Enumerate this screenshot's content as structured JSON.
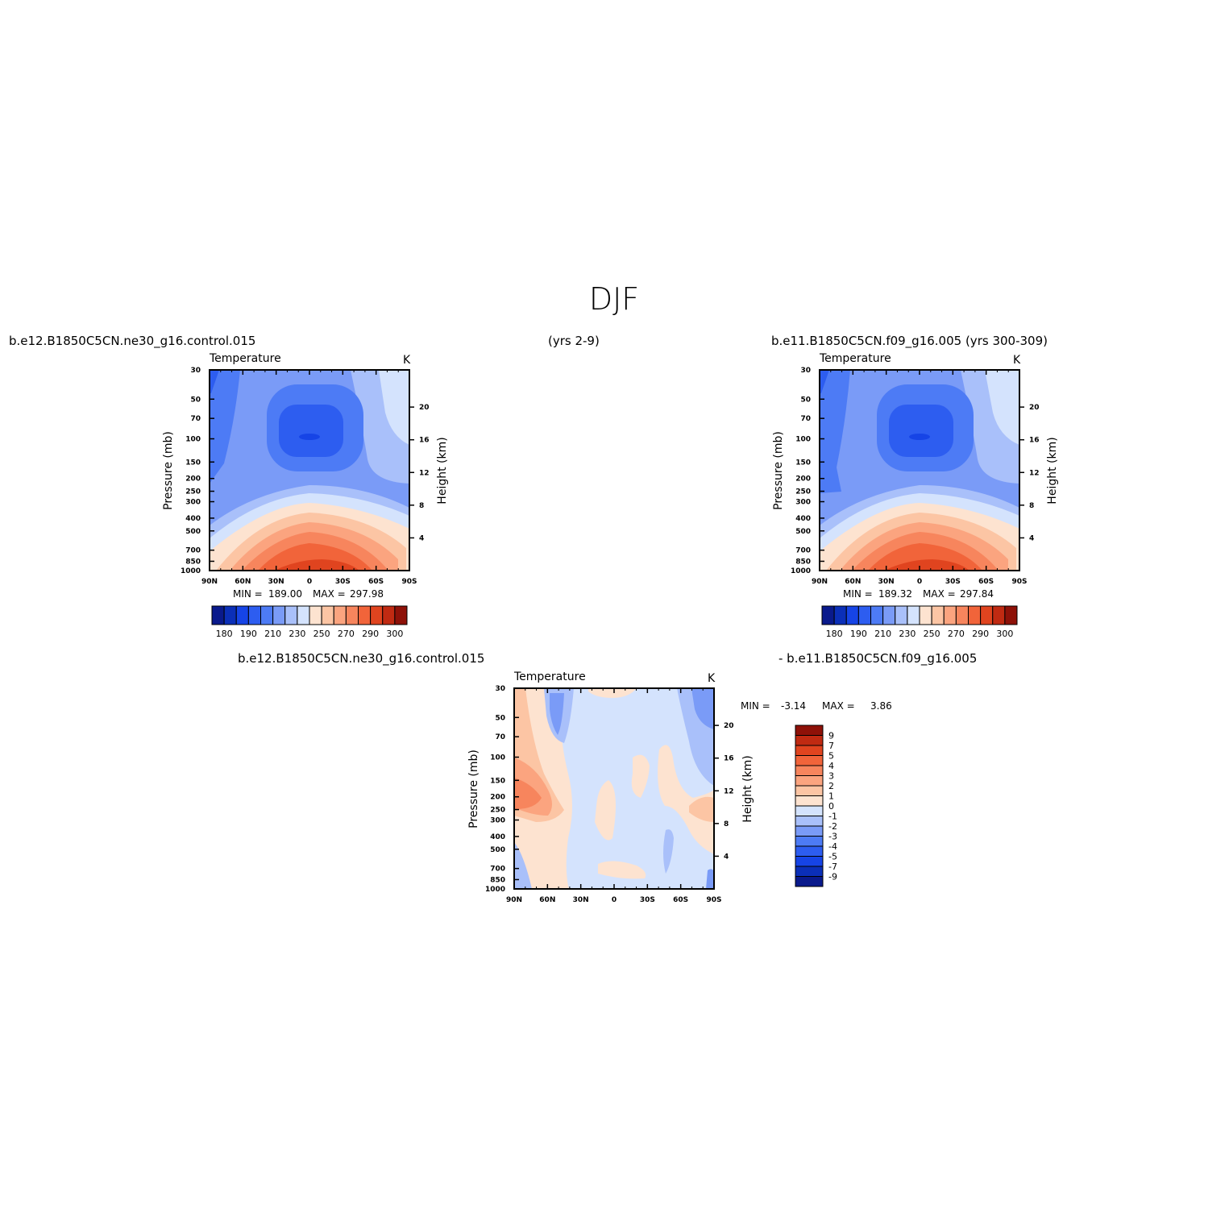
{
  "figure": {
    "title": "DJF",
    "header_left": "b.e12.B1850C5CN.ne30_g16.control.015",
    "header_mid": "(yrs 2-9)",
    "header_right": "b.e11.B1850C5CN.f09_g16.005 (yrs 300-309)",
    "diff_header_left": "b.e12.B1850C5CN.ne30_g16.control.015",
    "diff_header_right": "- b.e11.B1850C5CN.f09_g16.005"
  },
  "chart_data": [
    {
      "type": "heatmap",
      "panel": "control",
      "title": "Temperature",
      "units": "K",
      "ylabel": "Pressure (mb)",
      "y2label": "Height (km)",
      "x_ticks": [
        "90N",
        "60N",
        "30N",
        "0",
        "30S",
        "60S",
        "90S"
      ],
      "y_ticks": [
        "30",
        "50",
        "70",
        "100",
        "150",
        "200",
        "250",
        "300",
        "400",
        "500",
        "700",
        "850",
        "1000"
      ],
      "y2_ticks": [
        "20",
        "16",
        "12",
        "8",
        "4"
      ],
      "min_label": "MIN =",
      "min": "189.00",
      "max_label": "MAX =",
      "max": "297.98",
      "colorbar_labels": [
        "180",
        "190",
        "210",
        "230",
        "250",
        "270",
        "290",
        "300"
      ],
      "colorbar_colors": [
        "#0a1a8c",
        "#0b2fb8",
        "#1644e6",
        "#2d5df0",
        "#4d7bf5",
        "#7a9bf7",
        "#a9c0fa",
        "#d4e3fd",
        "#fde3d0",
        "#fcc5a4",
        "#fba47f",
        "#f7855d",
        "#f1643a",
        "#e0441f",
        "#c02a12",
        "#8e1108"
      ]
    },
    {
      "type": "heatmap",
      "panel": "reference",
      "title": "Temperature",
      "units": "K",
      "ylabel": "Pressure (mb)",
      "y2label": "Height (km)",
      "x_ticks": [
        "90N",
        "60N",
        "30N",
        "0",
        "30S",
        "60S",
        "90S"
      ],
      "y_ticks": [
        "30",
        "50",
        "70",
        "100",
        "150",
        "200",
        "250",
        "300",
        "400",
        "500",
        "700",
        "850",
        "1000"
      ],
      "y2_ticks": [
        "20",
        "16",
        "12",
        "8",
        "4"
      ],
      "min_label": "MIN =",
      "min": "189.32",
      "max_label": "MAX =",
      "max": "297.84",
      "colorbar_labels": [
        "180",
        "190",
        "210",
        "230",
        "250",
        "270",
        "290",
        "300"
      ],
      "colorbar_colors": [
        "#0a1a8c",
        "#0b2fb8",
        "#1644e6",
        "#2d5df0",
        "#4d7bf5",
        "#7a9bf7",
        "#a9c0fa",
        "#d4e3fd",
        "#fde3d0",
        "#fcc5a4",
        "#fba47f",
        "#f7855d",
        "#f1643a",
        "#e0441f",
        "#c02a12",
        "#8e1108"
      ]
    },
    {
      "type": "heatmap",
      "panel": "difference",
      "title": "Temperature",
      "units": "K",
      "ylabel": "Pressure (mb)",
      "y2label": "Height (km)",
      "x_ticks": [
        "90N",
        "60N",
        "30N",
        "0",
        "30S",
        "60S",
        "90S"
      ],
      "y_ticks": [
        "30",
        "50",
        "70",
        "100",
        "150",
        "200",
        "250",
        "300",
        "400",
        "500",
        "700",
        "850",
        "1000"
      ],
      "y2_ticks": [
        "20",
        "16",
        "12",
        "8",
        "4"
      ],
      "min_label": "MIN =",
      "min": "-3.14",
      "max_label": "MAX =",
      "max": "3.86",
      "colorbar_labels": [
        "9",
        "7",
        "5",
        "4",
        "3",
        "2",
        "1",
        "0",
        "-1",
        "-2",
        "-3",
        "-4",
        "-5",
        "-7",
        "-9"
      ],
      "colorbar_colors": [
        "#8e1108",
        "#c02a12",
        "#e0441f",
        "#f1643a",
        "#f7855d",
        "#fba47f",
        "#fcc5a4",
        "#fde3d0",
        "#d4e3fd",
        "#a9c0fa",
        "#7a9bf7",
        "#4d7bf5",
        "#2d5df0",
        "#1644e6",
        "#0b2fb8",
        "#0a1a8c"
      ]
    }
  ]
}
